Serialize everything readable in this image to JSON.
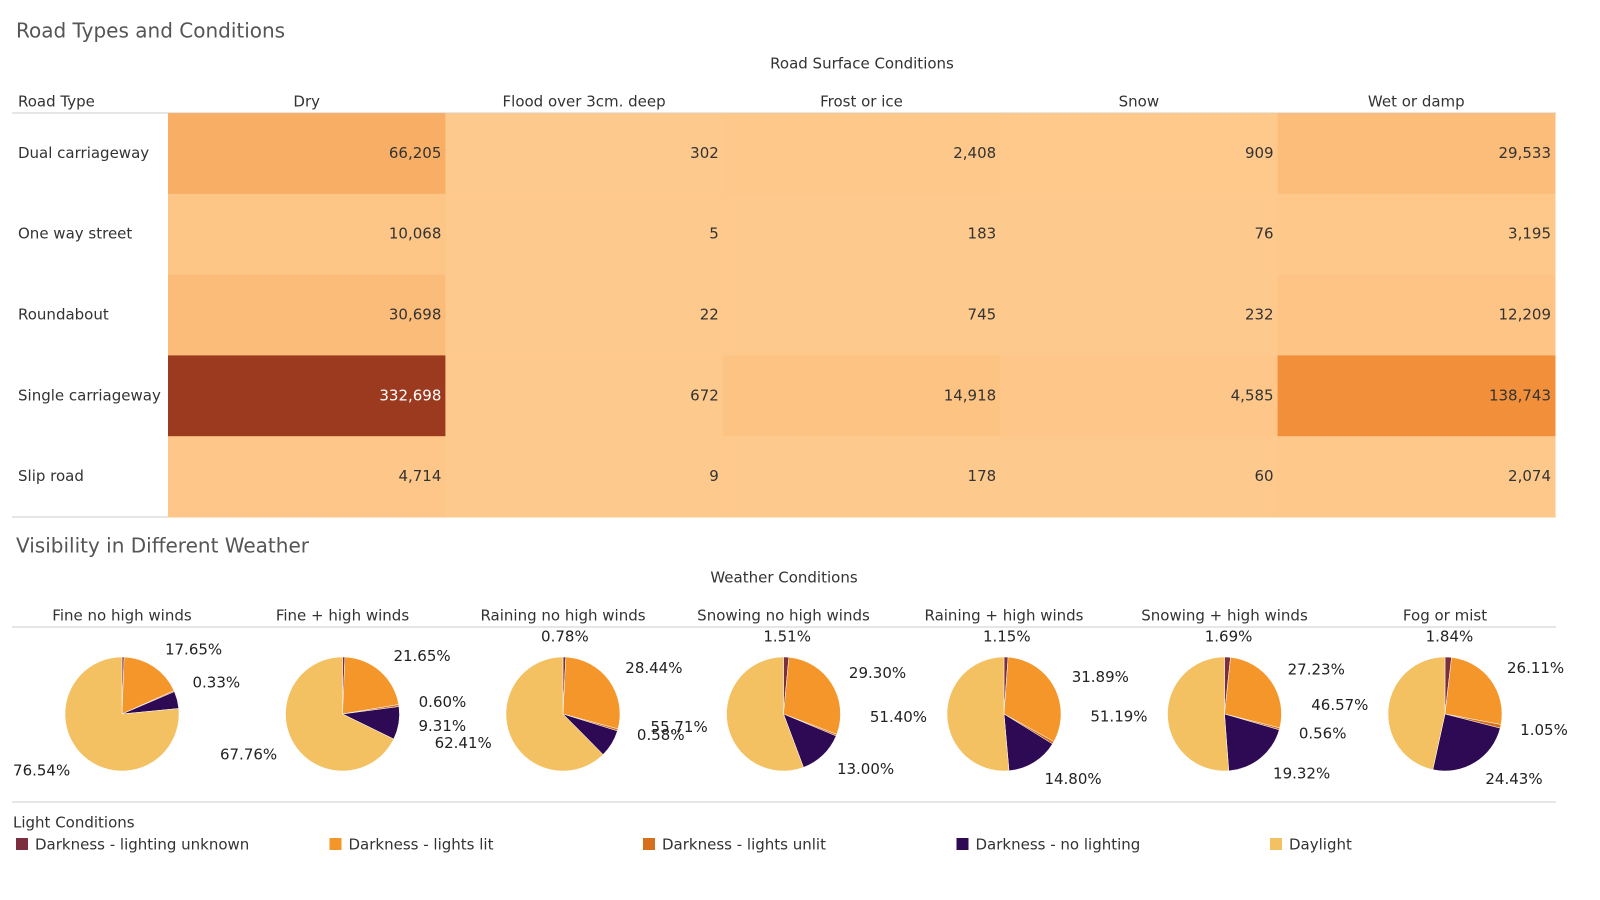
{
  "chart_data": [
    {
      "type": "heatmap",
      "title": "Road Types and Conditions",
      "column_title": "Road Surface Conditions",
      "row_title": "Road Type",
      "columns": [
        "Dry",
        "Flood over 3cm. deep",
        "Frost or ice",
        "Snow",
        "Wet or damp"
      ],
      "rows": [
        "Dual carriageway",
        "One way street",
        "Roundabout",
        "Single carriageway",
        "Slip road"
      ],
      "values": [
        [
          66205,
          302,
          2408,
          909,
          29533
        ],
        [
          10068,
          5,
          183,
          76,
          3195
        ],
        [
          30698,
          22,
          745,
          232,
          12209
        ],
        [
          332698,
          672,
          14918,
          4585,
          138743
        ],
        [
          4714,
          9,
          178,
          60,
          2074
        ]
      ],
      "value_labels": [
        [
          "66,205",
          "302",
          "2,408",
          "909",
          "29,533"
        ],
        [
          "10,068",
          "5",
          "183",
          "76",
          "3,195"
        ],
        [
          "30,698",
          "22",
          "745",
          "232",
          "12,209"
        ],
        [
          "332,698",
          "672",
          "14,918",
          "4,585",
          "138,743"
        ],
        [
          "4,714",
          "9",
          "178",
          "60",
          "2,074"
        ]
      ],
      "colors": [
        "#fec98c",
        "#f0842a",
        "#9c3a20"
      ]
    },
    {
      "type": "pie",
      "title": "Visibility in Different Weather",
      "subtitle": "Weather Conditions",
      "legend_title": "Light Conditions",
      "categories": [
        "Darkness - lighting unknown",
        "Darkness - lights lit",
        "Darkness - lights unlit",
        "Darkness - no lighting",
        "Daylight"
      ],
      "colors": [
        "#7b2f3e",
        "#f4962a",
        "#d6701c",
        "#2e0a55",
        "#f3c062"
      ],
      "pies": [
        {
          "name": "Fine no high winds",
          "values": [
            0.6,
            17.65,
            0.33,
            4.88,
            76.54
          ],
          "value_labels": [
            null,
            "17.65%",
            "0.33%",
            null,
            "76.54%"
          ]
        },
        {
          "name": "Fine + high winds",
          "values": [
            0.68,
            21.65,
            0.6,
            9.31,
            67.76
          ],
          "value_labels": [
            null,
            "21.65%",
            "0.60%",
            "9.31%",
            "67.76%"
          ]
        },
        {
          "name": "Raining no high winds",
          "values": [
            0.78,
            28.44,
            0.58,
            7.79,
            62.41
          ],
          "value_labels": [
            "0.78%",
            "28.44%",
            "0.58%",
            null,
            "62.41%"
          ]
        },
        {
          "name": "Snowing no high winds",
          "values": [
            1.51,
            29.3,
            0.48,
            13.0,
            55.71
          ],
          "value_labels": [
            "1.51%",
            "29.30%",
            null,
            "13.00%",
            "55.71%"
          ]
        },
        {
          "name": "Raining + high winds",
          "values": [
            1.15,
            31.89,
            0.76,
            14.8,
            51.4
          ],
          "value_labels": [
            "1.15%",
            "31.89%",
            null,
            "14.80%",
            "51.40%"
          ]
        },
        {
          "name": "Snowing + high winds",
          "values": [
            1.69,
            27.23,
            0.56,
            19.32,
            51.19
          ],
          "value_labels": [
            "1.69%",
            "27.23%",
            "0.56%",
            "19.32%",
            "51.19%"
          ]
        },
        {
          "name": "Fog or mist",
          "values": [
            1.84,
            26.11,
            1.05,
            24.43,
            46.57
          ],
          "value_labels": [
            "1.84%",
            "26.11%",
            "1.05%",
            "24.43%",
            "46.57%"
          ]
        }
      ]
    }
  ]
}
